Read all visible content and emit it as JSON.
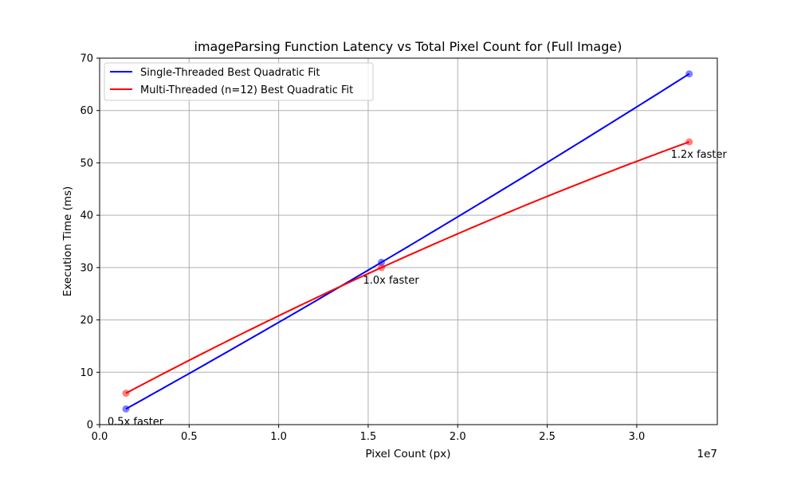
{
  "chart_data": {
    "type": "line",
    "title": "imageParsing Function Latency vs Total Pixel Count for (Full Image)",
    "xlabel": "Pixel Count (px)",
    "ylabel": "Execution Time (ms)",
    "x_offset_text": "1e7",
    "xlim": [
      0,
      3.45
    ],
    "ylim": [
      0,
      70
    ],
    "x_ticks": [
      0.0,
      0.5,
      1.0,
      1.5,
      2.0,
      2.5,
      3.0
    ],
    "x_tick_labels": [
      "0.0",
      "0.5",
      "1.0",
      "1.5",
      "2.0",
      "2.5",
      "3.0"
    ],
    "y_ticks": [
      0,
      10,
      20,
      30,
      40,
      50,
      60,
      70
    ],
    "y_tick_labels": [
      "0",
      "10",
      "20",
      "30",
      "40",
      "50",
      "60",
      "70"
    ],
    "grid": true,
    "legend_position": "top-left",
    "series": [
      {
        "name": "Single-Threaded Best Quadratic Fit",
        "color": "#0000ff",
        "x": [
          0.147,
          1.574,
          3.293
        ],
        "y": [
          3,
          31,
          67
        ]
      },
      {
        "name": "Multi-Threaded (n=12) Best Quadratic Fit",
        "color": "#ff0000",
        "x": [
          0.147,
          1.574,
          3.293
        ],
        "y": [
          6,
          30,
          54
        ]
      }
    ],
    "annotations": [
      {
        "text": "0.5x faster",
        "x": 0.147,
        "y": 3
      },
      {
        "text": "1.0x faster",
        "x": 1.574,
        "y": 30
      },
      {
        "text": "1.2x faster",
        "x": 3.293,
        "y": 54
      }
    ]
  }
}
